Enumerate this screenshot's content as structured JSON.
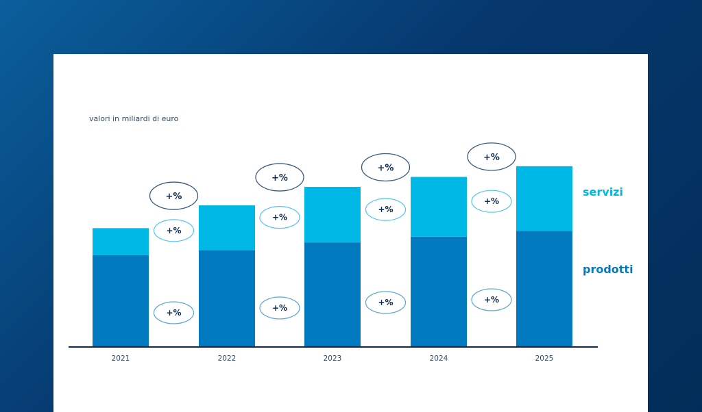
{
  "unit_label": "valori in miliardi di euro",
  "colors": {
    "servizi": "#00b8e6",
    "prodotti": "#0079be",
    "axis": "#0d2a52",
    "pct_text": "#0d2a52",
    "total_ellipse": "#3a5a82",
    "servizi_ellipse": "#4cc6ee",
    "prodotti_ellipse": "#5aa6d4"
  },
  "chart_data": {
    "type": "bar",
    "stacked": true,
    "categories": [
      "2021",
      "2022",
      "2023",
      "2024",
      "2025"
    ],
    "series": [
      {
        "name": "prodotti",
        "values": [
          128,
          135,
          146,
          154,
          162
        ]
      },
      {
        "name": "servizi",
        "values": [
          38,
          63,
          78,
          84,
          91
        ]
      }
    ],
    "ylim": [
      0,
      260
    ],
    "title": "",
    "xlabel": "",
    "ylabel": "",
    "legend": {
      "servizi": "servizi",
      "prodotti": "prodotti",
      "position": "right"
    },
    "growth_labels": {
      "total": [
        "+%",
        "+%",
        "+%",
        "+%"
      ],
      "servizi": [
        "+%",
        "+%",
        "+%",
        "+%"
      ],
      "prodotti": [
        "+%",
        "+%",
        "+%",
        "+%"
      ]
    }
  }
}
